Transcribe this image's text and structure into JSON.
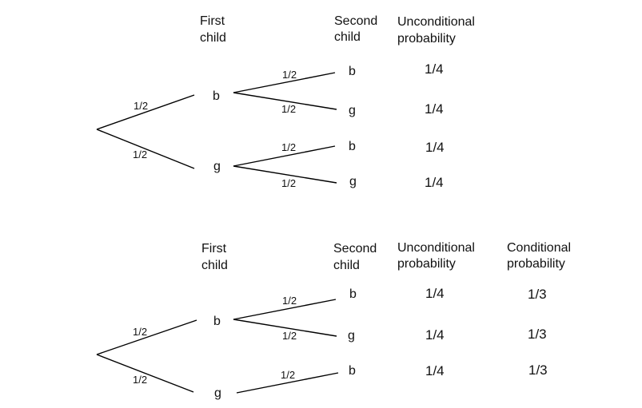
{
  "tree1": {
    "headers": {
      "first_child": [
        "First",
        "child"
      ],
      "second_child": [
        "Second",
        "child"
      ],
      "unconditional": [
        "Unconditional",
        "probability"
      ]
    },
    "root_branches": [
      {
        "label": "1/2",
        "node": "b"
      },
      {
        "label": "1/2",
        "node": "g"
      }
    ],
    "leaves": [
      {
        "branch_label": "1/2",
        "node": "b",
        "unconditional": "1/4"
      },
      {
        "branch_label": "1/2",
        "node": "g",
        "unconditional": "1/4"
      },
      {
        "branch_label": "1/2",
        "node": "b",
        "unconditional": "1/4"
      },
      {
        "branch_label": "1/2",
        "node": "g",
        "unconditional": "1/4"
      }
    ]
  },
  "tree2": {
    "headers": {
      "first_child": [
        "First",
        "child"
      ],
      "second_child": [
        "Second",
        "child"
      ],
      "unconditional": [
        "Unconditional",
        "probability"
      ],
      "conditional": [
        "Conditional",
        "probability"
      ]
    },
    "root_branches": [
      {
        "label": "1/2",
        "node": "b"
      },
      {
        "label": "1/2",
        "node": "g"
      }
    ],
    "leaves": [
      {
        "branch_label": "1/2",
        "node": "b",
        "unconditional": "1/4",
        "conditional": "1/3"
      },
      {
        "branch_label": "1/2",
        "node": "g",
        "unconditional": "1/4",
        "conditional": "1/3"
      },
      {
        "branch_label": "1/2",
        "node": "b",
        "unconditional": "1/4",
        "conditional": "1/3"
      }
    ]
  }
}
